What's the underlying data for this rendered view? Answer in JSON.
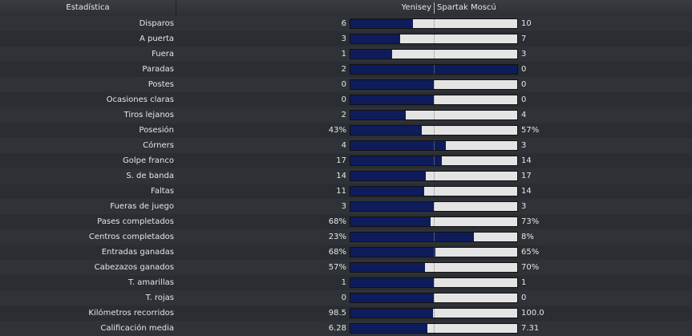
{
  "header": {
    "stat_label": "Estadística",
    "home_team": "Yenisey",
    "away_team": "Spartak Moscú"
  },
  "colors": {
    "home_bar": "#0e1c5c",
    "away_bar": "#e4e4e4"
  },
  "stats": [
    {
      "label": "Disparos",
      "home": "6",
      "away": "10",
      "home_share": 0.375
    },
    {
      "label": "A puerta",
      "home": "3",
      "away": "7",
      "home_share": 0.3
    },
    {
      "label": "Fuera",
      "home": "1",
      "away": "3",
      "home_share": 0.25
    },
    {
      "label": "Paradas",
      "home": "2",
      "away": "0",
      "home_share": 1.0
    },
    {
      "label": "Postes",
      "home": "0",
      "away": "0",
      "home_share": 0.5
    },
    {
      "label": "Ocasiones claras",
      "home": "0",
      "away": "0",
      "home_share": 0.5
    },
    {
      "label": "Tiros lejanos",
      "home": "2",
      "away": "4",
      "home_share": 0.333
    },
    {
      "label": "Posesión",
      "home": "43%",
      "away": "57%",
      "home_share": 0.43
    },
    {
      "label": "Córners",
      "home": "4",
      "away": "3",
      "home_share": 0.571
    },
    {
      "label": "Golpe franco",
      "home": "17",
      "away": "14",
      "home_share": 0.548
    },
    {
      "label": "S. de banda",
      "home": "14",
      "away": "17",
      "home_share": 0.452
    },
    {
      "label": "Faltas",
      "home": "11",
      "away": "14",
      "home_share": 0.44
    },
    {
      "label": "Fueras de juego",
      "home": "3",
      "away": "3",
      "home_share": 0.5
    },
    {
      "label": "Pases completados",
      "home": "68%",
      "away": "73%",
      "home_share": 0.482
    },
    {
      "label": "Centros completados",
      "home": "23%",
      "away": "8%",
      "home_share": 0.742
    },
    {
      "label": "Entradas ganadas",
      "home": "68%",
      "away": "65%",
      "home_share": 0.511
    },
    {
      "label": "Cabezazos ganados",
      "home": "57%",
      "away": "70%",
      "home_share": 0.449
    },
    {
      "label": "T. amarillas",
      "home": "1",
      "away": "1",
      "home_share": 0.5
    },
    {
      "label": "T. rojas",
      "home": "0",
      "away": "0",
      "home_share": 0.5
    },
    {
      "label": "Kilómetros recorridos",
      "home": "98.5",
      "away": "100.0",
      "home_share": 0.496
    },
    {
      "label": "Calificación media",
      "home": "6.28",
      "away": "7.31",
      "home_share": 0.462
    }
  ]
}
